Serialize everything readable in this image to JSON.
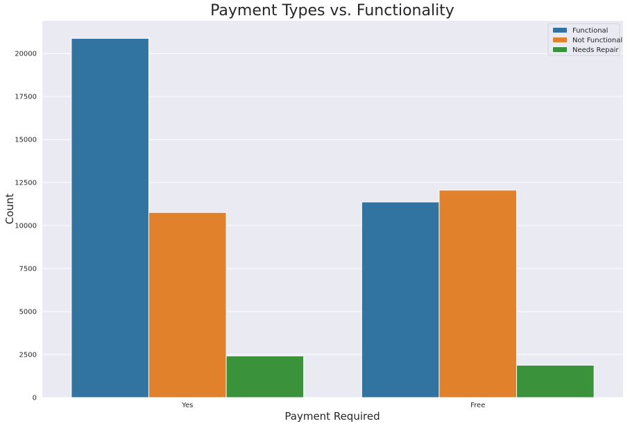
{
  "chart_data": {
    "type": "bar",
    "title": "Payment Types vs. Functionality",
    "xlabel": "Payment Required",
    "ylabel": "Count",
    "categories": [
      "Yes",
      "Free"
    ],
    "series": [
      {
        "name": "Functional",
        "color": "#3274a1",
        "values": [
          20880,
          11370
        ]
      },
      {
        "name": "Not Functional",
        "color": "#e1812c",
        "values": [
          10760,
          12060
        ]
      },
      {
        "name": "Needs Repair",
        "color": "#3a923a",
        "values": [
          2420,
          1880
        ]
      }
    ],
    "ylim": [
      0,
      21900
    ],
    "yticks": [
      0,
      2500,
      5000,
      7500,
      10000,
      12500,
      15000,
      17500,
      20000
    ],
    "ytick_labels": [
      "0",
      "2500",
      "5000",
      "7500",
      "10000",
      "12500",
      "15000",
      "17500",
      "20000"
    ],
    "grid": true,
    "legend_position": "top-right",
    "background": "#eaeaf2"
  }
}
